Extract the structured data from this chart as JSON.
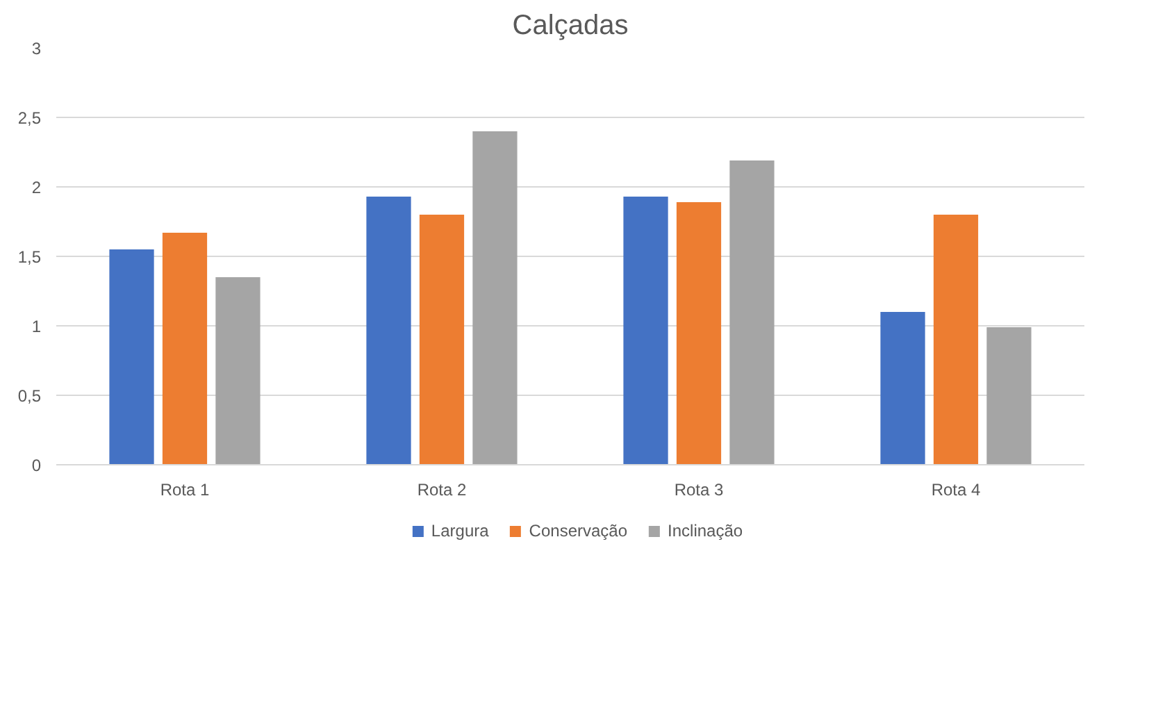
{
  "chart_data": {
    "type": "bar",
    "title": "Calçadas",
    "categories": [
      "Rota 1",
      "Rota 2",
      "Rota 3",
      "Rota 4"
    ],
    "series": [
      {
        "name": "Largura",
        "color": "#4472c4",
        "values": [
          1.55,
          1.93,
          1.93,
          1.1
        ]
      },
      {
        "name": "Conservação",
        "color": "#ed7d31",
        "values": [
          1.67,
          1.8,
          1.89,
          1.8
        ]
      },
      {
        "name": "Inclinação",
        "color": "#a5a5a5",
        "values": [
          1.35,
          2.4,
          2.19,
          0.99
        ]
      }
    ],
    "ylim": [
      0,
      3
    ],
    "yticks": [
      0,
      {
        "value": 0.5,
        "label": "0,5"
      },
      1,
      {
        "value": 1.5,
        "label": "1,5"
      },
      2,
      {
        "value": 2.5,
        "label": "2,5"
      },
      3
    ],
    "grid": "y",
    "legend": "bottom"
  }
}
